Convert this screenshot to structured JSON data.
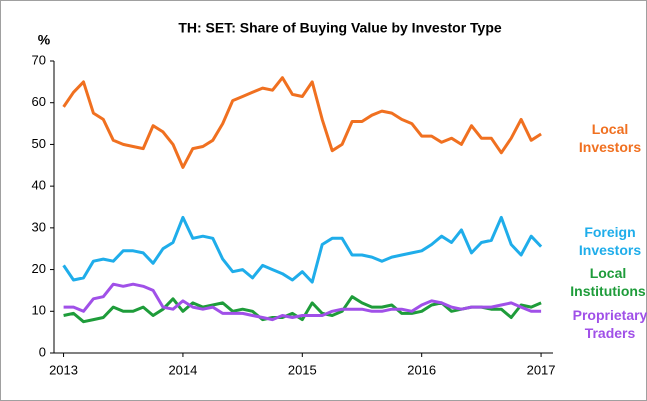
{
  "chart_data": {
    "type": "line",
    "title": "TH: SET: Share of Buying Value by Investor Type",
    "y_label": "%",
    "x": [
      2013,
      2013.083,
      2013.167,
      2013.25,
      2013.333,
      2013.417,
      2013.5,
      2013.583,
      2013.667,
      2013.75,
      2013.833,
      2013.917,
      2014,
      2014.083,
      2014.167,
      2014.25,
      2014.333,
      2014.417,
      2014.5,
      2014.583,
      2014.667,
      2014.75,
      2014.833,
      2014.917,
      2015,
      2015.083,
      2015.167,
      2015.25,
      2015.333,
      2015.417,
      2015.5,
      2015.583,
      2015.667,
      2015.75,
      2015.833,
      2015.917,
      2016,
      2016.083,
      2016.167,
      2016.25,
      2016.333,
      2016.417,
      2016.5,
      2016.583,
      2016.667,
      2016.75,
      2016.833,
      2016.917,
      2017
    ],
    "series": [
      {
        "name": "Local Investors",
        "color": "#f07020",
        "values": [
          59,
          62.5,
          65,
          57.5,
          56,
          51,
          50,
          49.5,
          49,
          54.5,
          53,
          50,
          44.5,
          49,
          49.5,
          51,
          55,
          60.5,
          61.5,
          62.5,
          63.5,
          63,
          66,
          62,
          61.5,
          65,
          56,
          48.5,
          50,
          55.5,
          55.5,
          57,
          58,
          57.5,
          56,
          55,
          52,
          52,
          50.5,
          51.5,
          50,
          54.5,
          51.5,
          51.5,
          48,
          51.5,
          56,
          51,
          52.5
        ]
      },
      {
        "name": "Foreign Investors",
        "color": "#1fadea",
        "values": [
          21,
          17.5,
          18,
          22,
          22.5,
          22,
          24.5,
          24.5,
          24,
          21.5,
          25,
          26.5,
          32.5,
          27.5,
          28,
          27.5,
          22.5,
          19.5,
          20,
          18,
          21,
          20,
          19,
          17.5,
          19.5,
          17,
          26,
          27.5,
          27.5,
          23.5,
          23.5,
          23,
          22,
          23,
          23.5,
          24,
          24.5,
          26,
          28,
          26.5,
          29.5,
          24,
          26.5,
          27,
          32.5,
          26,
          23.5,
          28,
          25.5
        ]
      },
      {
        "name": "Local Institutions",
        "color": "#1e9c3a",
        "values": [
          9,
          9.5,
          7.5,
          8,
          8.5,
          11,
          10,
          10,
          11,
          9,
          10.5,
          13,
          10,
          12,
          11,
          11.5,
          12,
          10,
          10.5,
          10,
          8,
          8.5,
          8.5,
          9.5,
          8,
          12,
          9.5,
          9,
          10,
          13.5,
          12,
          11,
          11,
          11.5,
          9.5,
          9.5,
          10,
          11.5,
          12,
          10,
          10.5,
          11,
          11,
          10.5,
          10.5,
          8.5,
          11.5,
          11,
          12
        ]
      },
      {
        "name": "Proprietary Traders",
        "color": "#a050e8",
        "values": [
          11,
          11,
          10,
          13,
          13.5,
          16.5,
          16,
          16.5,
          16,
          15,
          11,
          10.5,
          12.5,
          11,
          10.5,
          11,
          9.5,
          9.5,
          9.5,
          9,
          8.5,
          8,
          9,
          8.5,
          9,
          9,
          9,
          10,
          10.5,
          10.5,
          10.5,
          10,
          10,
          10.5,
          10.5,
          10,
          11.5,
          12.5,
          12,
          11,
          10.5,
          11,
          11,
          11,
          11.5,
          12,
          11,
          10,
          10
        ]
      }
    ],
    "xlim": [
      2012.92,
      2017.1
    ],
    "xticks": [
      2013,
      2014,
      2015,
      2016,
      2017
    ],
    "ylim": [
      0,
      70
    ],
    "yticks": [
      0,
      10,
      20,
      30,
      40,
      50,
      60,
      70
    ]
  }
}
